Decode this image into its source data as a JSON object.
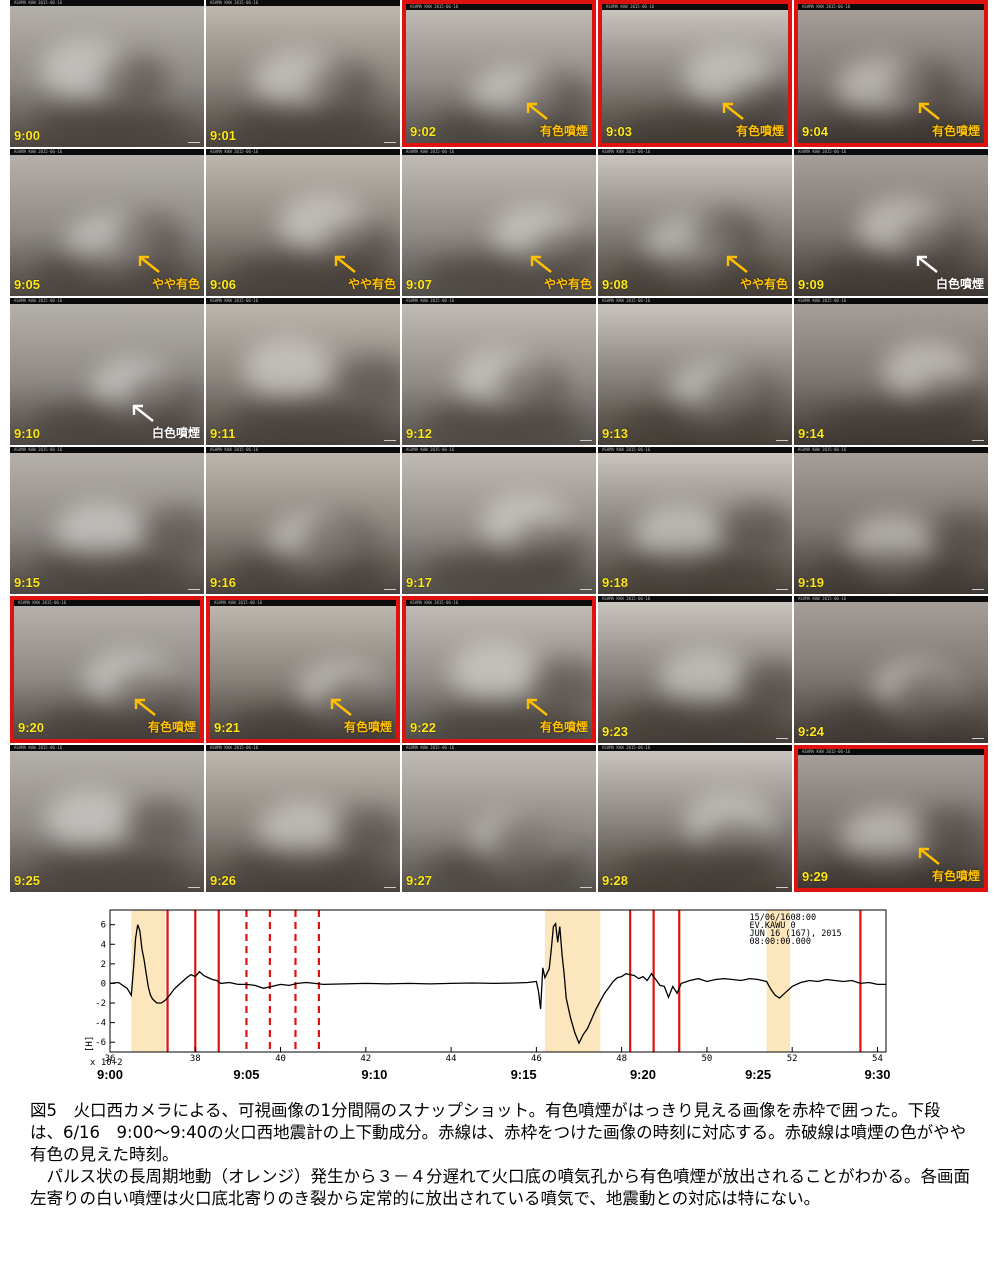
{
  "frames": [
    {
      "time": "9:00",
      "label": "",
      "label_color": "",
      "red": false,
      "arrow": ""
    },
    {
      "time": "9:01",
      "label": "",
      "label_color": "",
      "red": false,
      "arrow": ""
    },
    {
      "time": "9:02",
      "label": "有色噴煙",
      "label_color": "#ffc000",
      "red": true,
      "arrow": "orange"
    },
    {
      "time": "9:03",
      "label": "有色噴煙",
      "label_color": "#ffc000",
      "red": true,
      "arrow": "orange"
    },
    {
      "time": "9:04",
      "label": "有色噴煙",
      "label_color": "#ffc000",
      "red": true,
      "arrow": "orange"
    },
    {
      "time": "9:05",
      "label": "やや有色",
      "label_color": "#ffc000",
      "red": false,
      "arrow": "orange"
    },
    {
      "time": "9:06",
      "label": "やや有色",
      "label_color": "#ffc000",
      "red": false,
      "arrow": "orange"
    },
    {
      "time": "9:07",
      "label": "やや有色",
      "label_color": "#ffc000",
      "red": false,
      "arrow": "orange"
    },
    {
      "time": "9:08",
      "label": "やや有色",
      "label_color": "#ffc000",
      "red": false,
      "arrow": "orange"
    },
    {
      "time": "9:09",
      "label": "白色噴煙",
      "label_color": "#ffffff",
      "red": false,
      "arrow": "white"
    },
    {
      "time": "9:10",
      "label": "白色噴煙",
      "label_color": "#ffffff",
      "red": false,
      "arrow": "white"
    },
    {
      "time": "9:11",
      "label": "",
      "label_color": "",
      "red": false,
      "arrow": ""
    },
    {
      "time": "9:12",
      "label": "",
      "label_color": "",
      "red": false,
      "arrow": ""
    },
    {
      "time": "9:13",
      "label": "",
      "label_color": "",
      "red": false,
      "arrow": ""
    },
    {
      "time": "9:14",
      "label": "",
      "label_color": "",
      "red": false,
      "arrow": ""
    },
    {
      "time": "9:15",
      "label": "",
      "label_color": "",
      "red": false,
      "arrow": ""
    },
    {
      "time": "9:16",
      "label": "",
      "label_color": "",
      "red": false,
      "arrow": ""
    },
    {
      "time": "9:17",
      "label": "",
      "label_color": "",
      "red": false,
      "arrow": ""
    },
    {
      "time": "9:18",
      "label": "",
      "label_color": "",
      "red": false,
      "arrow": ""
    },
    {
      "time": "9:19",
      "label": "",
      "label_color": "",
      "red": false,
      "arrow": ""
    },
    {
      "time": "9:20",
      "label": "有色噴煙",
      "label_color": "#ffc000",
      "red": true,
      "arrow": "orange"
    },
    {
      "time": "9:21",
      "label": "有色噴煙",
      "label_color": "#ffc000",
      "red": true,
      "arrow": "orange"
    },
    {
      "time": "9:22",
      "label": "有色噴煙",
      "label_color": "#ffc000",
      "red": true,
      "arrow": "orange"
    },
    {
      "time": "9:23",
      "label": "",
      "label_color": "",
      "red": false,
      "arrow": ""
    },
    {
      "time": "9:24",
      "label": "",
      "label_color": "",
      "red": false,
      "arrow": ""
    },
    {
      "time": "9:25",
      "label": "",
      "label_color": "",
      "red": false,
      "arrow": ""
    },
    {
      "time": "9:26",
      "label": "",
      "label_color": "",
      "red": false,
      "arrow": ""
    },
    {
      "time": "9:27",
      "label": "",
      "label_color": "",
      "red": false,
      "arrow": ""
    },
    {
      "time": "9:28",
      "label": "",
      "label_color": "",
      "red": false,
      "arrow": ""
    },
    {
      "time": "9:29",
      "label": "有色噴煙",
      "label_color": "#ffc000",
      "red": true,
      "arrow": "orange"
    }
  ],
  "camera_header": "ASAMA KAW 2015-06-16",
  "chart_data": {
    "type": "line",
    "y_ticks": [
      "6",
      "4",
      "2",
      "0",
      "-2",
      "-4",
      "-6"
    ],
    "ylim": [
      -7,
      7.5
    ],
    "x_ticks": [
      "36",
      "38",
      "40",
      "42",
      "44",
      "46",
      "48",
      "50",
      "52",
      "54"
    ],
    "xlim": [
      36,
      54.2
    ],
    "x_multiplier": "x  10+2",
    "ylabel": "[H]",
    "time_labels": [
      {
        "text": "9:00",
        "x": 36
      },
      {
        "text": "9:05",
        "x": 39.2
      },
      {
        "text": "9:10",
        "x": 42.2
      },
      {
        "text": "9:15",
        "x": 45.7
      },
      {
        "text": "9:20",
        "x": 48.5
      },
      {
        "text": "9:25",
        "x": 51.2
      },
      {
        "text": "9:30",
        "x": 54
      }
    ],
    "header_lines": [
      "15/06/1608:00",
      "EV.KAWU   0",
      "JUN  16 (167),  2015",
      "08:00:00.000"
    ],
    "orange_bands": [
      [
        36.5,
        37.3
      ],
      [
        46.2,
        47.5
      ],
      [
        51.4,
        51.95
      ]
    ],
    "red_solid_lines": [
      37.35,
      38.0,
      38.55,
      48.2,
      48.75,
      49.35,
      53.6
    ],
    "red_dashed_lines": [
      39.2,
      39.75,
      40.35,
      40.9
    ],
    "trace": [
      [
        36.0,
        0.0
      ],
      [
        36.2,
        0.1
      ],
      [
        36.4,
        -0.5
      ],
      [
        36.5,
        -1.2
      ],
      [
        36.55,
        1.5
      ],
      [
        36.6,
        4.6
      ],
      [
        36.65,
        6.0
      ],
      [
        36.7,
        5.4
      ],
      [
        36.75,
        3.5
      ],
      [
        36.8,
        2.4
      ],
      [
        36.85,
        1.0
      ],
      [
        36.9,
        -0.4
      ],
      [
        36.95,
        -1.2
      ],
      [
        37.0,
        -1.6
      ],
      [
        37.1,
        -2.0
      ],
      [
        37.2,
        -2.0
      ],
      [
        37.3,
        -1.7
      ],
      [
        37.4,
        -1.2
      ],
      [
        37.5,
        -0.6
      ],
      [
        37.6,
        -0.2
      ],
      [
        37.7,
        0.2
      ],
      [
        37.8,
        0.6
      ],
      [
        37.9,
        0.9
      ],
      [
        38.0,
        0.7
      ],
      [
        38.1,
        1.2
      ],
      [
        38.2,
        0.8
      ],
      [
        38.3,
        0.6
      ],
      [
        38.4,
        0.4
      ],
      [
        38.5,
        0.3
      ],
      [
        38.6,
        0.0
      ],
      [
        38.8,
        0.1
      ],
      [
        39.0,
        -0.1
      ],
      [
        39.2,
        -0.1
      ],
      [
        39.4,
        -0.2
      ],
      [
        39.6,
        -0.5
      ],
      [
        39.8,
        -0.3
      ],
      [
        40.0,
        -0.1
      ],
      [
        40.2,
        -0.2
      ],
      [
        40.4,
        0.0
      ],
      [
        40.6,
        0.1
      ],
      [
        40.8,
        0.0
      ],
      [
        41.0,
        -0.1
      ],
      [
        41.5,
        -0.05
      ],
      [
        42.0,
        0.0
      ],
      [
        42.5,
        -0.05
      ],
      [
        43.0,
        0.0
      ],
      [
        43.5,
        -0.05
      ],
      [
        44.0,
        0.0
      ],
      [
        44.5,
        0.05
      ],
      [
        45.0,
        0.0
      ],
      [
        45.5,
        0.05
      ],
      [
        45.8,
        0.1
      ],
      [
        46.0,
        0.2
      ],
      [
        46.05,
        -0.8
      ],
      [
        46.1,
        -2.6
      ],
      [
        46.15,
        1.6
      ],
      [
        46.2,
        0.6
      ],
      [
        46.3,
        1.5
      ],
      [
        46.35,
        3.5
      ],
      [
        46.4,
        5.8
      ],
      [
        46.45,
        6.1
      ],
      [
        46.5,
        4.2
      ],
      [
        46.55,
        5.8
      ],
      [
        46.6,
        3.0
      ],
      [
        46.65,
        1.0
      ],
      [
        46.7,
        -1.5
      ],
      [
        46.8,
        -3.5
      ],
      [
        46.9,
        -5.0
      ],
      [
        47.0,
        -6.1
      ],
      [
        47.1,
        -5.2
      ],
      [
        47.2,
        -4.6
      ],
      [
        47.3,
        -3.6
      ],
      [
        47.4,
        -2.6
      ],
      [
        47.5,
        -1.8
      ],
      [
        47.6,
        -1.0
      ],
      [
        47.7,
        -0.4
      ],
      [
        47.8,
        0.2
      ],
      [
        47.9,
        0.6
      ],
      [
        48.0,
        0.7
      ],
      [
        48.1,
        1.0
      ],
      [
        48.2,
        0.9
      ],
      [
        48.3,
        0.8
      ],
      [
        48.4,
        0.5
      ],
      [
        48.5,
        0.7
      ],
      [
        48.6,
        0.3
      ],
      [
        48.7,
        1.0
      ],
      [
        48.8,
        0.4
      ],
      [
        48.9,
        -0.2
      ],
      [
        49.0,
        -0.3
      ],
      [
        49.1,
        -1.4
      ],
      [
        49.2,
        -0.3
      ],
      [
        49.3,
        -1.0
      ],
      [
        49.4,
        0.0
      ],
      [
        49.6,
        0.3
      ],
      [
        49.8,
        0.5
      ],
      [
        50.0,
        0.2
      ],
      [
        50.2,
        0.4
      ],
      [
        50.4,
        0.5
      ],
      [
        50.6,
        0.4
      ],
      [
        50.8,
        0.3
      ],
      [
        51.0,
        0.5
      ],
      [
        51.2,
        0.4
      ],
      [
        51.4,
        0.2
      ],
      [
        51.5,
        -0.6
      ],
      [
        51.6,
        -1.2
      ],
      [
        51.7,
        -1.5
      ],
      [
        51.8,
        -1.1
      ],
      [
        51.9,
        -0.7
      ],
      [
        52.0,
        -0.3
      ],
      [
        52.2,
        0.1
      ],
      [
        52.4,
        0.3
      ],
      [
        52.6,
        0.2
      ],
      [
        52.8,
        0.4
      ],
      [
        53.0,
        0.3
      ],
      [
        53.2,
        0.2
      ],
      [
        53.4,
        0.3
      ],
      [
        53.6,
        0.0
      ],
      [
        53.8,
        0.1
      ],
      [
        54.0,
        -0.1
      ],
      [
        54.2,
        -0.1
      ]
    ]
  },
  "caption": {
    "p1": "図5　火口西カメラによる、可視画像の1分間隔のスナップショット。有色噴煙がはっきり見える画像を赤枠で囲った。下段は、6/16　9:00～9:40の火口西地震計の上下動成分。赤線は、赤枠をつけた画像の時刻に対応する。赤破線は噴煙の色がやや有色の見えた時刻。",
    "p2": "　パルス状の長周期地動（オレンジ）発生から３－４分遅れて火口底の噴気孔から有色噴煙が放出されることがわかる。各画面左寄りの白い噴煙は火口底北寄りのき裂から定常的に放出されている噴気で、地震動との対応は特にない。"
  }
}
